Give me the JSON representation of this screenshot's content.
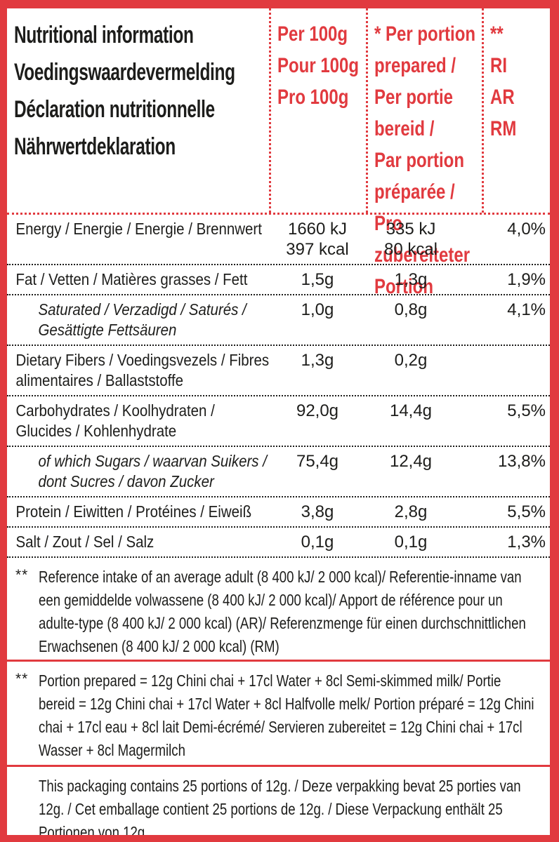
{
  "colors": {
    "accent_red": "#e13a3f",
    "text_black": "#1d1d1b"
  },
  "header": {
    "title": "Nutritional information\nVoedingswaardevermelding\nDéclaration nutritionnelle\nNährwertdeklaration",
    "per_100g": "Per 100g\nPour 100g\nPro 100g",
    "per_portion": "* Per portion\nprepared /\nPer portie\nbereid /\nPar portion\npréparée /\nPro\nzubereiteter\nPortion",
    "ri": "**\nRI\nAR\nRM"
  },
  "rows": [
    {
      "label": "Energy / Energie / Energie / Brennwert",
      "per100g": "1660 kJ\n397 kcal",
      "portion": "335 kJ\n80 kcal",
      "ri": "4,0%",
      "sub": false,
      "lines": 2
    },
    {
      "label": "Fat / Vetten / Matières grasses / Fett",
      "per100g": "1,5g",
      "portion": "1,3g",
      "ri": "1,9%",
      "sub": false,
      "lines": 1
    },
    {
      "label": "Saturated / Verzadigd / Saturés / Gesättigte Fettsäuren",
      "per100g": "1,0g",
      "portion": "0,8g",
      "ri": "4,1%",
      "sub": true,
      "lines": 2
    },
    {
      "label": "Dietary Fibers / Voedingsvezels / Fibres alimentaires / Ballaststoffe",
      "per100g": "1,3g",
      "portion": "0,2g",
      "ri": "",
      "sub": false,
      "lines": 2
    },
    {
      "label": "Carbohydrates / Koolhydraten / Glucides / Kohlenhydrate",
      "per100g": "92,0g",
      "portion": "14,4g",
      "ri": "5,5%",
      "sub": false,
      "lines": 2
    },
    {
      "label": "of which Sugars / waarvan Suikers / dont Sucres / davon Zucker",
      "per100g": "75,4g",
      "portion": "12,4g",
      "ri": "13,8%",
      "sub": true,
      "lines": 2
    },
    {
      "label": "Protein / Eiwitten / Protéines / Eiweiß",
      "per100g": "3,8g",
      "portion": "2,8g",
      "ri": "5,5%",
      "sub": false,
      "lines": 1
    },
    {
      "label": "Salt / Zout / Sel / Salz",
      "per100g": "0,1g",
      "portion": "0,1g",
      "ri": "1,3%",
      "sub": false,
      "lines": 1
    }
  ],
  "footnotes": [
    {
      "marker": "**",
      "text": "Reference intake of an average adult (8 400 kJ/ 2 000 kcal)/ Referentie-inname van een gemiddelde volwassene (8 400 kJ/ 2 000 kcal)/ Apport de référence pour un adulte-type (8 400 kJ/ 2 000 kcal) (AR)/ Referenzmenge für einen durchschnittlichen Erwachsenen (8 400 kJ/ 2 000 kcal) (RM)"
    },
    {
      "marker": "**",
      "text": "Portion prepared = 12g Chini chai + 17cl Water + 8cl Semi-skimmed milk/ Portie bereid = 12g Chini chai + 17cl Water + 8cl Halfvolle melk/ Portion préparé = 12g Chini chai + 17cl eau + 8cl lait Demi-écrémé/ Servieren zubereitet = 12g Chini chai + 17cl Wasser + 8cl Magermilch"
    },
    {
      "marker": "",
      "text": "This packaging contains 25 portions of 12g. / Deze verpakking bevat 25 porties van 12g. / Cet emballage contient 25 portions de 12g. / Diese Verpackung enthält 25 Portionen von 12g."
    }
  ]
}
